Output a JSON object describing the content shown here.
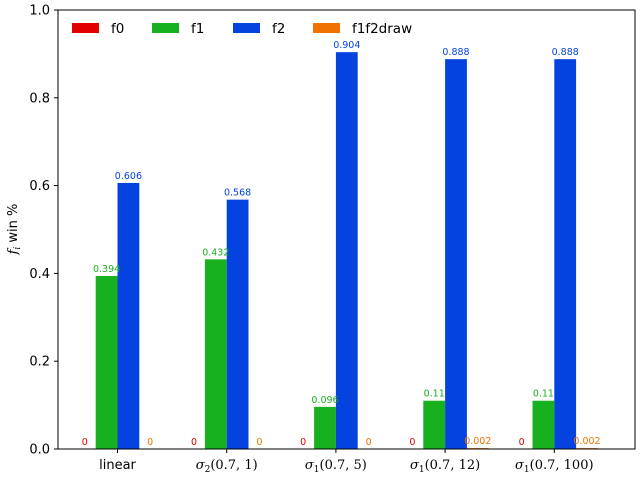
{
  "chart_data": {
    "type": "bar",
    "categories": [
      "linear",
      "σ2(0.7, 1)",
      "σ1(0.7, 5)",
      "σ1(0.7, 12)",
      "σ1(0.7, 100)"
    ],
    "series": [
      {
        "name": "f0",
        "color": "#e30000",
        "values": [
          0,
          0,
          0,
          0,
          0
        ],
        "labels": [
          "0",
          "0",
          "0",
          "0",
          "0"
        ]
      },
      {
        "name": "f1",
        "color": "#17b01f",
        "values": [
          0.394,
          0.432,
          0.096,
          0.11,
          0.11
        ],
        "labels": [
          "0.394",
          "0.432",
          "0.096",
          "0.11",
          "0.11"
        ]
      },
      {
        "name": "f2",
        "color": "#0443e0",
        "values": [
          0.606,
          0.568,
          0.904,
          0.888,
          0.888
        ],
        "labels": [
          "0.606",
          "0.568",
          "0.904",
          "0.888",
          "0.888"
        ]
      },
      {
        "name": "f1f2draw",
        "color": "#f07300",
        "values": [
          0,
          0,
          0,
          0.002,
          0.002
        ],
        "labels": [
          "0",
          "0",
          "0",
          "0.002",
          "0.002"
        ]
      }
    ],
    "ylabel": "f_i win %",
    "ylim": [
      0,
      1.0
    ],
    "yticks": [
      "0.0",
      "0.2",
      "0.4",
      "0.6",
      "0.8",
      "1.0"
    ],
    "grid": false,
    "legend_position": "top, horizontal"
  }
}
